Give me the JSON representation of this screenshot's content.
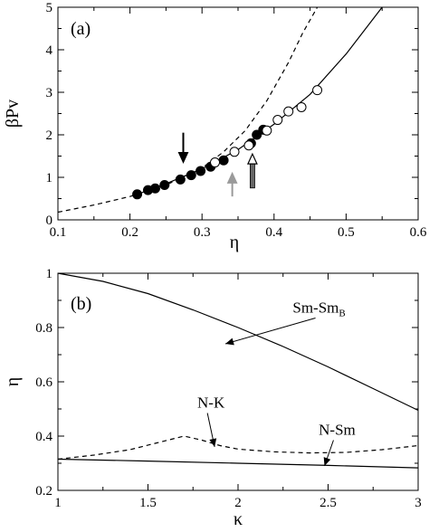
{
  "chart_data": [
    {
      "type": "line",
      "panel_label": "(a)",
      "xlabel": "η",
      "ylabel": "βPv",
      "xlim": [
        0.1,
        0.6
      ],
      "ylim": [
        0,
        5
      ],
      "xticks": [
        "0.1",
        "0.2",
        "0.3",
        "0.4",
        "0.5",
        "0.6"
      ],
      "yticks": [
        "0",
        "1",
        "2",
        "3",
        "4",
        "5"
      ],
      "series": [
        {
          "style": "dashed",
          "x": [
            0.1,
            0.15,
            0.2,
            0.25,
            0.3,
            0.33,
            0.36,
            0.39,
            0.42,
            0.44,
            0.46
          ],
          "y": [
            0.18,
            0.35,
            0.55,
            0.82,
            1.22,
            1.6,
            2.1,
            2.8,
            3.7,
            4.4,
            5.0
          ]
        },
        {
          "style": "solid",
          "x": [
            0.21,
            0.25,
            0.3,
            0.35,
            0.4,
            0.45,
            0.5,
            0.55
          ],
          "y": [
            0.6,
            0.85,
            1.2,
            1.65,
            2.25,
            2.95,
            3.9,
            5.0
          ]
        },
        {
          "style": "filled-circles",
          "x": [
            0.21,
            0.225,
            0.235,
            0.248,
            0.27,
            0.285,
            0.298,
            0.312,
            0.33,
            0.368,
            0.376,
            0.385
          ],
          "y": [
            0.6,
            0.7,
            0.74,
            0.82,
            0.95,
            1.05,
            1.15,
            1.25,
            1.4,
            1.8,
            2.0,
            2.12
          ]
        },
        {
          "style": "open-circles",
          "x": [
            0.318,
            0.345,
            0.365,
            0.39,
            0.405,
            0.42,
            0.438,
            0.46
          ],
          "y": [
            1.35,
            1.6,
            1.75,
            2.1,
            2.35,
            2.55,
            2.65,
            3.05
          ]
        }
      ],
      "arrows": [
        {
          "style": "black",
          "x": 0.274,
          "y_from": 2.05,
          "y_to": 1.35
        },
        {
          "style": "gray-up",
          "x": 0.342,
          "y_from": 0.55,
          "y_to": 1.1
        },
        {
          "style": "open-head-up",
          "x": 0.37,
          "y_from": 0.75,
          "y_to": 1.55
        }
      ]
    },
    {
      "type": "line",
      "panel_label": "(b)",
      "xlabel": "κ",
      "ylabel": "η",
      "xlim": [
        1,
        3
      ],
      "ylim": [
        0.2,
        1.0
      ],
      "xticks": [
        "1",
        "1.5",
        "2",
        "2.5",
        "3"
      ],
      "yticks": [
        "0.2",
        "0.4",
        "0.6",
        "0.8",
        "1"
      ],
      "series": [
        {
          "style": "solid",
          "x": [
            1.0,
            1.25,
            1.5,
            1.75,
            2.0,
            2.25,
            2.5,
            2.75,
            3.0
          ],
          "y": [
            1.0,
            0.97,
            0.925,
            0.865,
            0.8,
            0.73,
            0.655,
            0.575,
            0.495
          ]
        },
        {
          "style": "dashed",
          "x": [
            1.0,
            1.2,
            1.4,
            1.55,
            1.7,
            1.8,
            1.9,
            2.0,
            2.2,
            2.4,
            2.6,
            2.8,
            3.0
          ],
          "y": [
            0.315,
            0.33,
            0.35,
            0.375,
            0.4,
            0.385,
            0.365,
            0.352,
            0.342,
            0.338,
            0.34,
            0.35,
            0.365
          ]
        },
        {
          "style": "solid",
          "x": [
            1.0,
            1.5,
            2.0,
            2.5,
            3.0
          ],
          "y": [
            0.315,
            0.308,
            0.3,
            0.292,
            0.283
          ]
        }
      ],
      "annotations": [
        {
          "text": "Sm-Sm",
          "sub": "B",
          "x": 2.45,
          "y": 0.855,
          "arrow_to": [
            1.93,
            0.74
          ]
        },
        {
          "text": "N-K",
          "x": 1.85,
          "y": 0.505,
          "arrow_to": [
            1.87,
            0.36
          ]
        },
        {
          "text": "N-Sm",
          "x": 2.55,
          "y": 0.405,
          "arrow_to": [
            2.48,
            0.29
          ]
        }
      ]
    }
  ]
}
